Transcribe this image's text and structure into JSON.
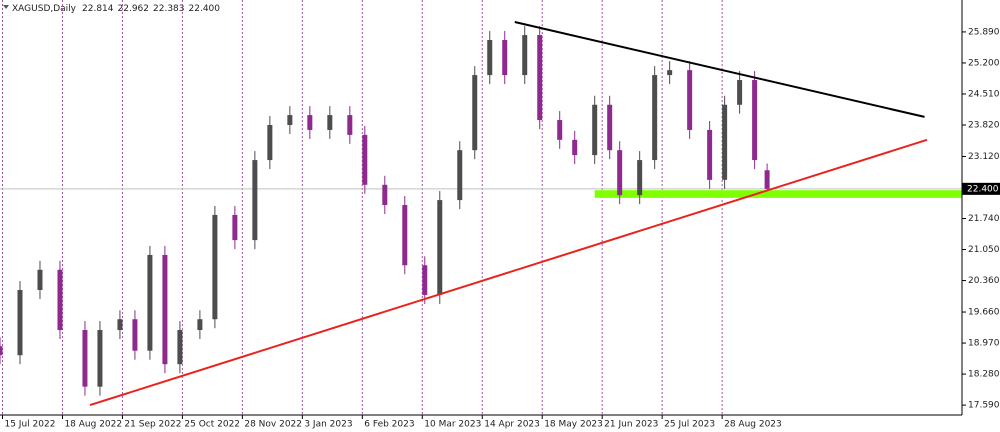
{
  "chart_data": {
    "type": "candlestick",
    "title": "XAGUSD,Daily",
    "x": [
      0,
      8,
      16,
      24,
      34,
      40,
      48,
      54,
      60,
      66,
      72,
      80,
      86,
      94,
      102,
      108,
      116,
      124,
      132,
      140,
      146,
      154,
      162,
      170,
      176,
      184,
      190,
      196,
      202,
      210,
      216,
      224,
      230,
      238,
      244,
      248,
      256,
      262,
      268,
      276,
      284,
      290,
      296,
      302,
      307
    ],
    "open": [
      18.9,
      18.7,
      20.15,
      20.6,
      19.26,
      18.0,
      19.26,
      19.5,
      18.8,
      20.93,
      18.5,
      19.26,
      19.5,
      21.82,
      21.26,
      23.04,
      23.82,
      24.04,
      23.71,
      24.04,
      23.6,
      22.49,
      22.04,
      20.7,
      20.04,
      22.15,
      23.26,
      24.93,
      25.71,
      24.93,
      25.82,
      23.93,
      23.49,
      23.15,
      24.27,
      23.26,
      22.26,
      23.04,
      24.93,
      25.04,
      23.71,
      22.6,
      24.27,
      24.82,
      22.814
    ],
    "high": [
      19.1,
      20.35,
      20.8,
      20.8,
      19.46,
      19.46,
      19.7,
      19.7,
      21.13,
      21.13,
      19.46,
      19.7,
      22.02,
      22.02,
      23.24,
      24.02,
      24.24,
      24.24,
      24.24,
      24.24,
      23.8,
      22.69,
      22.24,
      20.9,
      22.35,
      23.46,
      25.13,
      25.91,
      25.91,
      26.02,
      26.02,
      24.13,
      23.69,
      24.47,
      24.47,
      23.46,
      23.24,
      25.13,
      25.24,
      25.24,
      23.91,
      24.47,
      25.02,
      25.02,
      22.962
    ],
    "low": [
      18.5,
      18.5,
      19.95,
      19.06,
      17.8,
      17.8,
      19.06,
      18.6,
      18.6,
      18.3,
      18.3,
      19.06,
      19.3,
      21.06,
      21.06,
      22.84,
      23.62,
      23.51,
      23.51,
      23.4,
      22.29,
      21.84,
      20.5,
      19.84,
      19.84,
      21.95,
      23.06,
      24.73,
      24.73,
      24.73,
      23.73,
      23.29,
      22.95,
      22.95,
      23.06,
      22.06,
      22.06,
      22.84,
      24.73,
      23.51,
      22.4,
      22.4,
      24.07,
      22.84,
      22.383
    ],
    "close": [
      18.7,
      20.15,
      20.6,
      19.26,
      18.0,
      19.26,
      19.5,
      18.8,
      20.93,
      18.5,
      19.26,
      19.5,
      21.82,
      21.26,
      23.04,
      23.82,
      24.04,
      23.71,
      24.04,
      23.6,
      22.49,
      22.04,
      20.7,
      20.04,
      22.15,
      23.26,
      24.93,
      25.71,
      24.93,
      25.82,
      23.93,
      23.49,
      23.15,
      24.27,
      23.26,
      22.26,
      23.04,
      24.93,
      25.04,
      23.71,
      22.6,
      24.27,
      24.82,
      23.04,
      22.4
    ],
    "up_color": "#4d4d4d",
    "down_color": "#8e2a8e",
    "current_price": {
      "value": 22.4,
      "label": "22.400"
    },
    "xlim": [
      0,
      385
    ],
    "ylim": [
      17.37,
      26.6
    ],
    "xticks": [
      {
        "value": 1,
        "label": "15 Jul 2022"
      },
      {
        "value": 25,
        "label": "18 Aug 2022"
      },
      {
        "value": 49,
        "label": "21 Sep 2022"
      },
      {
        "value": 73,
        "label": "25 Oct 2022"
      },
      {
        "value": 97,
        "label": "28 Nov 2022"
      },
      {
        "value": 121,
        "label": "3 Jan 2023"
      },
      {
        "value": 145,
        "label": "6 Feb 2023"
      },
      {
        "value": 169,
        "label": "10 Mar 2023"
      },
      {
        "value": 193,
        "label": "14 Apr 2023"
      },
      {
        "value": 217,
        "label": "18 May 2023"
      },
      {
        "value": 241,
        "label": "21 Jun 2023"
      },
      {
        "value": 265,
        "label": "25 Jul 2023"
      },
      {
        "value": 289,
        "label": "28 Aug 2023"
      }
    ],
    "yticks": [
      {
        "value": 17.59,
        "label": "17.590"
      },
      {
        "value": 18.28,
        "label": "18.280"
      },
      {
        "value": 18.97,
        "label": "18.970"
      },
      {
        "value": 19.66,
        "label": "19.660"
      },
      {
        "value": 20.36,
        "label": "20.360"
      },
      {
        "value": 21.05,
        "label": "21.050"
      },
      {
        "value": 21.74,
        "label": "21.740"
      },
      {
        "value": 23.12,
        "label": "23.120"
      },
      {
        "value": 23.82,
        "label": "23.820"
      },
      {
        "value": 24.51,
        "label": "24.510"
      },
      {
        "value": 25.2,
        "label": "25.200"
      },
      {
        "value": 25.89,
        "label": "25.890"
      }
    ],
    "xgrid": true,
    "grid_color": "#a64ca6",
    "trendlines": [
      {
        "color": "#e8231c",
        "x": [
          36,
          371
        ],
        "y": [
          17.59,
          23.49
        ]
      },
      {
        "color": "#000000",
        "x": [
          206,
          370
        ],
        "y": [
          26.11,
          24.0
        ]
      }
    ],
    "zone": {
      "color": "#7fff00",
      "x": [
        238,
        385
      ],
      "y": [
        22.2,
        22.37
      ]
    }
  }
}
